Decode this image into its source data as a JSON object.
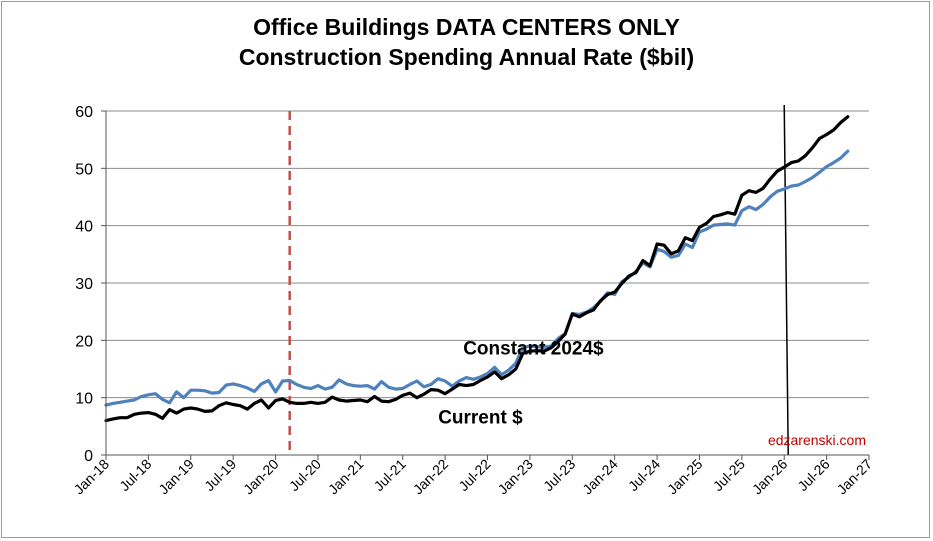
{
  "chart_data": {
    "type": "line",
    "title_line1": "Office Buildings DATA CENTERS ONLY",
    "title_line2": "Construction Spending Annual Rate ($bil)",
    "xlabel": "",
    "ylabel": "",
    "ylim": [
      0,
      60
    ],
    "y_ticks": [
      "0",
      "10",
      "20",
      "30",
      "40",
      "50",
      "60"
    ],
    "x_tick_labels": [
      "Jan-18",
      "Jul-18",
      "Jan-19",
      "Jul-19",
      "Jan-20",
      "Jul-20",
      "Jan-21",
      "Jul-21",
      "Jan-22",
      "Jul-22",
      "Jan-23",
      "Jul-23",
      "Jan-24",
      "Jul-24",
      "Jan-25",
      "Jul-25",
      "Jan-26",
      "Jul-26",
      "Jan-27"
    ],
    "x_months": 108,
    "grid": "horizontal",
    "vertical_markers": [
      {
        "month": 26,
        "style": "dashed",
        "color": "#c0504d"
      },
      {
        "month": 96,
        "style": "solid",
        "color": "#000000"
      }
    ],
    "annotations": [
      {
        "text": "Constant 2024$",
        "month": 60.5,
        "y": 17.5
      },
      {
        "text": "Current $",
        "month": 53,
        "y": 5.5
      }
    ],
    "credit": "edzarenski.com",
    "series": [
      {
        "name": "Constant 2024$",
        "color": "#4f81bd",
        "x_start": "Jan-18",
        "values": [
          8.7,
          9.0,
          9.2,
          9.4,
          9.6,
          10.2,
          10.5,
          10.7,
          9.7,
          9.1,
          11.0,
          10.0,
          11.3,
          11.3,
          11.2,
          10.8,
          10.9,
          12.2,
          12.4,
          12.1,
          11.7,
          11.1,
          12.4,
          13.0,
          11.0,
          12.9,
          13.0,
          12.3,
          11.8,
          11.6,
          12.1,
          11.5,
          11.8,
          13.1,
          12.4,
          12.1,
          12.0,
          12.1,
          11.5,
          12.8,
          11.8,
          11.5,
          11.6,
          12.3,
          12.9,
          11.9,
          12.3,
          13.3,
          12.9,
          12.0,
          12.9,
          13.5,
          13.2,
          13.6,
          14.2,
          15.3,
          14.0,
          14.8,
          16.0,
          18.8,
          19.0,
          18.9,
          18.8,
          19.0,
          20.3,
          21.2,
          24.7,
          24.5,
          24.9,
          25.7,
          26.8,
          28.3,
          28.0,
          30.2,
          31.0,
          32.0,
          33.5,
          32.8,
          35.9,
          35.5,
          34.5,
          34.8,
          36.8,
          36.2,
          38.9,
          39.4,
          40.1,
          40.2,
          40.3,
          40.1,
          42.6,
          43.3,
          42.8,
          43.7,
          45.0,
          46.0,
          46.4,
          46.9,
          47.1,
          47.7,
          48.4,
          49.3,
          50.3,
          51.0,
          51.8,
          53.0
        ]
      },
      {
        "name": "Current $",
        "color": "#000000",
        "x_start": "Jan-18",
        "values": [
          6.0,
          6.3,
          6.5,
          6.5,
          7.1,
          7.3,
          7.4,
          7.1,
          6.4,
          7.9,
          7.3,
          8.0,
          8.2,
          8.0,
          7.6,
          7.7,
          8.6,
          9.1,
          8.8,
          8.6,
          8.0,
          9.0,
          9.6,
          8.2,
          9.5,
          9.8,
          9.2,
          9.0,
          9.0,
          9.2,
          9.0,
          9.2,
          10.1,
          9.6,
          9.4,
          9.5,
          9.6,
          9.3,
          10.2,
          9.4,
          9.3,
          9.7,
          10.4,
          10.8,
          10.0,
          10.6,
          11.4,
          11.3,
          10.7,
          11.5,
          12.3,
          12.1,
          12.3,
          13.0,
          13.6,
          14.5,
          13.3,
          14.0,
          15.0,
          17.7,
          18.1,
          18.2,
          18.1,
          18.7,
          19.8,
          21.1,
          24.6,
          24.1,
          24.8,
          25.3,
          26.9,
          28.0,
          28.4,
          29.9,
          31.2,
          31.8,
          33.9,
          33.0,
          36.8,
          36.6,
          35.1,
          35.6,
          37.9,
          37.4,
          39.7,
          40.4,
          41.6,
          41.9,
          42.3,
          42.0,
          45.3,
          46.1,
          45.8,
          46.5,
          48.1,
          49.5,
          50.2,
          51.0,
          51.3,
          52.2,
          53.6,
          55.2,
          55.9,
          56.7,
          58.0,
          59.0
        ]
      }
    ]
  }
}
